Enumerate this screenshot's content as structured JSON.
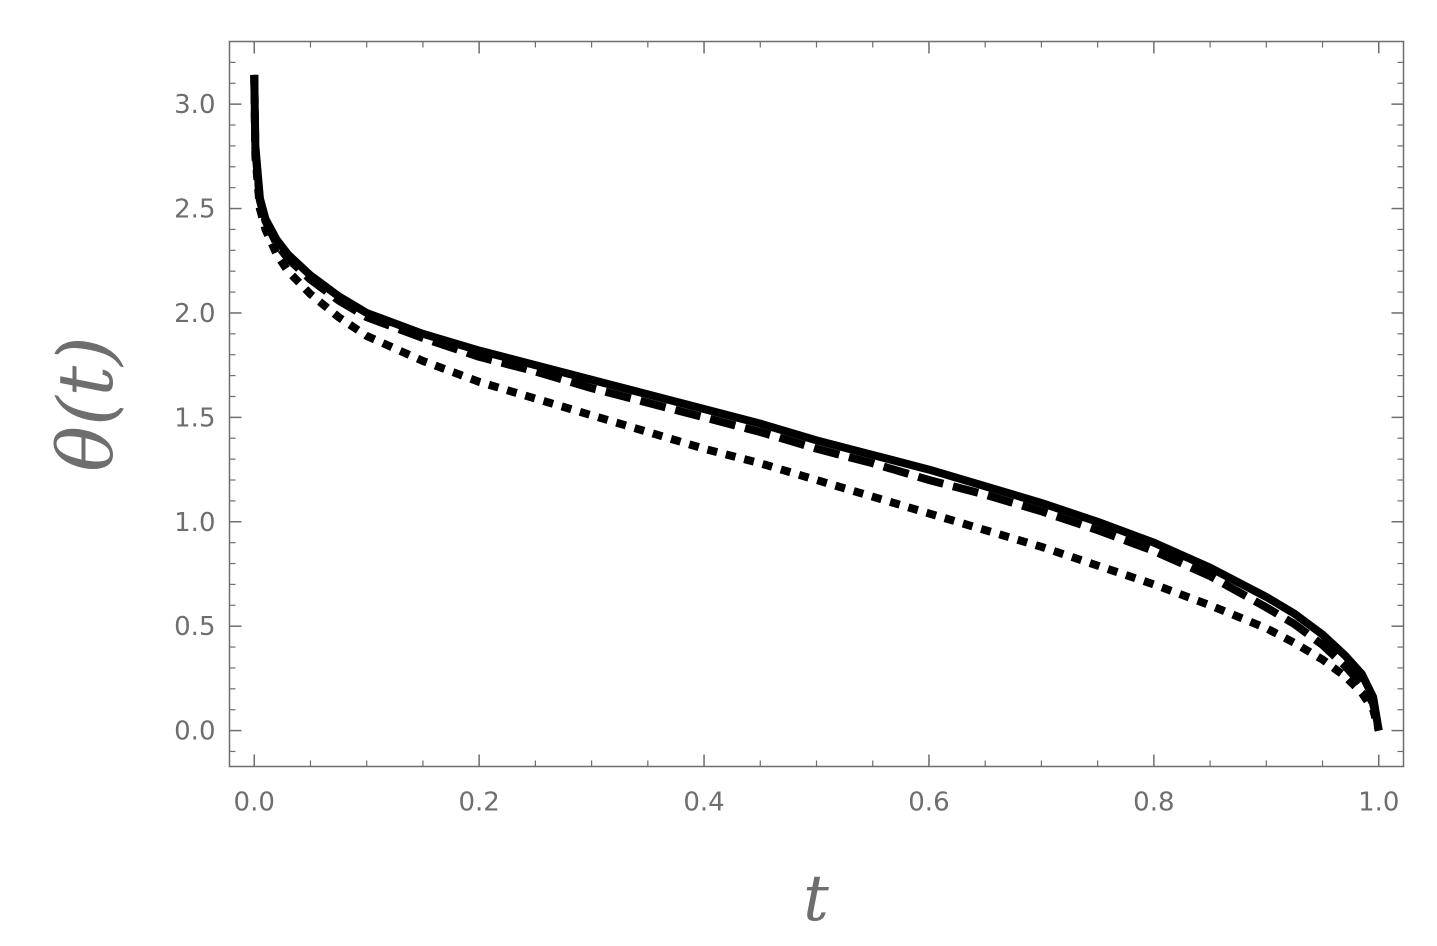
{
  "chart_data": {
    "type": "line",
    "title": "",
    "xlabel": "t",
    "ylabel": "θ(t)",
    "xlim": [
      -0.022,
      1.022
    ],
    "ylim": [
      -0.172,
      3.3
    ],
    "grid": false,
    "x_ticks": [
      "0.0",
      "0.2",
      "0.4",
      "0.6",
      "0.8",
      "1.0"
    ],
    "y_ticks": [
      "0.0",
      "0.5",
      "1.0",
      "1.5",
      "2.0",
      "2.5",
      "3.0"
    ],
    "series": [
      {
        "style": "solid",
        "color": "#000000",
        "points": [
          [
            0.0,
            3.14
          ],
          [
            0.001,
            2.8
          ],
          [
            0.005,
            2.55
          ],
          [
            0.01,
            2.45
          ],
          [
            0.02,
            2.35
          ],
          [
            0.03,
            2.28
          ],
          [
            0.05,
            2.18
          ],
          [
            0.075,
            2.08
          ],
          [
            0.1,
            2.0
          ],
          [
            0.15,
            1.9
          ],
          [
            0.2,
            1.82
          ],
          [
            0.25,
            1.75
          ],
          [
            0.3,
            1.68
          ],
          [
            0.35,
            1.61
          ],
          [
            0.4,
            1.54
          ],
          [
            0.45,
            1.47
          ],
          [
            0.5,
            1.39
          ],
          [
            0.55,
            1.32
          ],
          [
            0.6,
            1.25
          ],
          [
            0.65,
            1.17
          ],
          [
            0.7,
            1.09
          ],
          [
            0.75,
            1.0
          ],
          [
            0.8,
            0.9
          ],
          [
            0.85,
            0.78
          ],
          [
            0.9,
            0.64
          ],
          [
            0.925,
            0.56
          ],
          [
            0.95,
            0.46
          ],
          [
            0.97,
            0.36
          ],
          [
            0.985,
            0.27
          ],
          [
            0.995,
            0.16
          ],
          [
            1.0,
            0.0
          ]
        ]
      },
      {
        "style": "dashed",
        "color": "#000000",
        "points": [
          [
            0.0,
            3.14
          ],
          [
            0.001,
            2.78
          ],
          [
            0.005,
            2.54
          ],
          [
            0.01,
            2.44
          ],
          [
            0.02,
            2.33
          ],
          [
            0.03,
            2.26
          ],
          [
            0.05,
            2.16
          ],
          [
            0.075,
            2.06
          ],
          [
            0.1,
            1.98
          ],
          [
            0.15,
            1.88
          ],
          [
            0.2,
            1.79
          ],
          [
            0.25,
            1.72
          ],
          [
            0.3,
            1.64
          ],
          [
            0.35,
            1.57
          ],
          [
            0.4,
            1.5
          ],
          [
            0.45,
            1.43
          ],
          [
            0.5,
            1.35
          ],
          [
            0.55,
            1.28
          ],
          [
            0.6,
            1.2
          ],
          [
            0.65,
            1.13
          ],
          [
            0.7,
            1.05
          ],
          [
            0.75,
            0.96
          ],
          [
            0.8,
            0.86
          ],
          [
            0.85,
            0.74
          ],
          [
            0.9,
            0.59
          ],
          [
            0.925,
            0.51
          ],
          [
            0.95,
            0.41
          ],
          [
            0.97,
            0.31
          ],
          [
            0.985,
            0.22
          ],
          [
            0.995,
            0.13
          ],
          [
            1.0,
            0.0
          ]
        ]
      },
      {
        "style": "dotted",
        "color": "#000000",
        "points": [
          [
            0.0,
            3.14
          ],
          [
            0.001,
            2.75
          ],
          [
            0.005,
            2.5
          ],
          [
            0.01,
            2.4
          ],
          [
            0.02,
            2.28
          ],
          [
            0.03,
            2.2
          ],
          [
            0.05,
            2.09
          ],
          [
            0.075,
            1.98
          ],
          [
            0.1,
            1.89
          ],
          [
            0.15,
            1.77
          ],
          [
            0.2,
            1.67
          ],
          [
            0.25,
            1.59
          ],
          [
            0.3,
            1.51
          ],
          [
            0.35,
            1.43
          ],
          [
            0.4,
            1.35
          ],
          [
            0.45,
            1.28
          ],
          [
            0.5,
            1.2
          ],
          [
            0.55,
            1.12
          ],
          [
            0.6,
            1.04
          ],
          [
            0.65,
            0.96
          ],
          [
            0.7,
            0.88
          ],
          [
            0.75,
            0.79
          ],
          [
            0.8,
            0.7
          ],
          [
            0.85,
            0.6
          ],
          [
            0.9,
            0.49
          ],
          [
            0.925,
            0.42
          ],
          [
            0.95,
            0.34
          ],
          [
            0.97,
            0.26
          ],
          [
            0.985,
            0.18
          ],
          [
            0.995,
            0.1
          ],
          [
            1.0,
            0.0
          ]
        ]
      }
    ]
  }
}
